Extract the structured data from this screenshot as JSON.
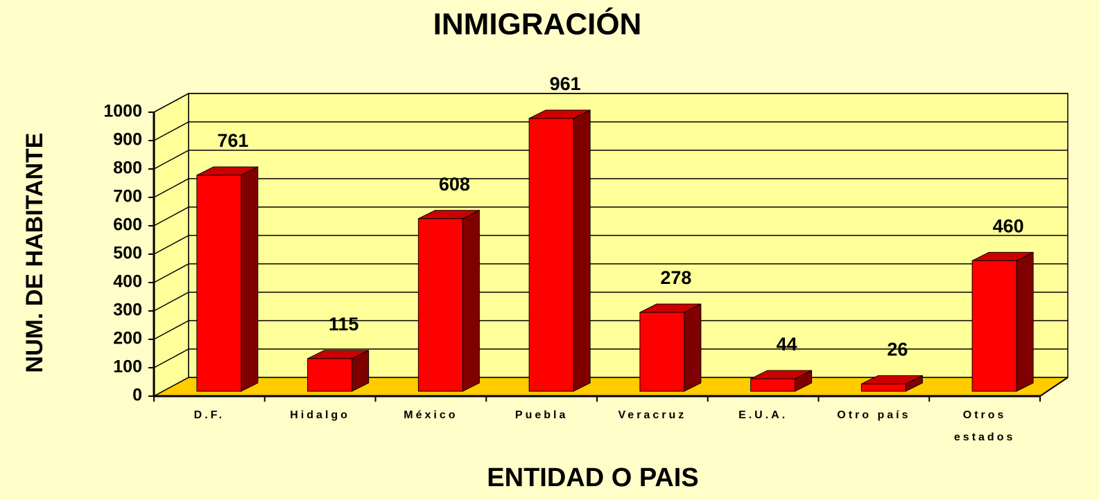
{
  "chart_data": {
    "type": "bar3d",
    "title": "INMIGRACIÓN",
    "y_label": "NUM. DE HABITANTE",
    "x_label": "ENTIDAD O PAIS",
    "categories": [
      "D.F.",
      "Hidalgo",
      "México",
      "Puebla",
      "Veracruz",
      "E.U.A.",
      "Otro país",
      "Otros estados"
    ],
    "values": [
      761,
      115,
      608,
      961,
      278,
      44,
      26,
      460
    ],
    "color": "#ff0000",
    "ylim": [
      0,
      1000
    ],
    "yticks": [
      0,
      100,
      200,
      300,
      400,
      500,
      600,
      700,
      800,
      900,
      1000
    ],
    "grid": true
  }
}
